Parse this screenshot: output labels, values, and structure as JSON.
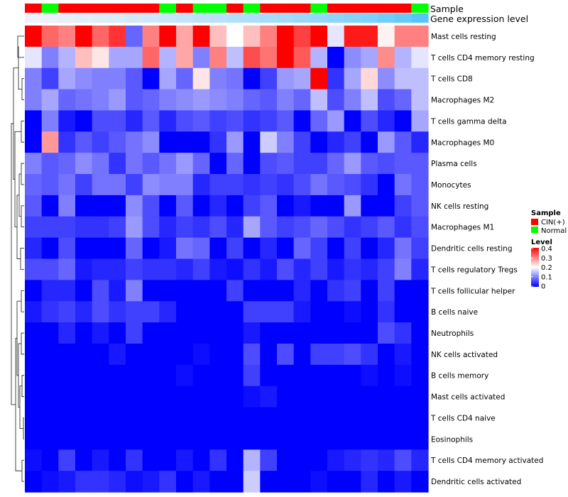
{
  "chart_data": {
    "type": "heatmap",
    "annotations": {
      "sample_title": "Sample",
      "expression_title": "Gene expression level",
      "sample": [
        "CIN",
        "Normal",
        "CIN",
        "CIN",
        "CIN",
        "CIN",
        "CIN",
        "CIN",
        "Normal",
        "CIN",
        "Normal",
        "Normal",
        "CIN",
        "Normal",
        "CIN",
        "CIN",
        "CIN",
        "Normal",
        "CIN",
        "CIN",
        "CIN",
        "CIN",
        "CIN",
        "Normal"
      ],
      "expression": [
        0.02,
        0.04,
        0.06,
        0.09,
        0.12,
        0.15,
        0.19,
        0.22,
        0.25,
        0.29,
        0.32,
        0.35,
        0.39,
        0.42,
        0.46,
        0.49,
        0.53,
        0.57,
        0.61,
        0.66,
        0.71,
        0.78,
        0.86,
        0.95
      ]
    },
    "rows": [
      "Mast cells resting",
      "T cells CD4 memory resting",
      "T cells CD8",
      "Macrophages M2",
      "T cells gamma delta",
      "Macrophages M0",
      "Plasma cells",
      "Monocytes",
      "NK cells resting",
      "Macrophages M1",
      "Dendritic cells resting",
      "T cells regulatory  Tregs",
      "T cells follicular helper",
      "B cells naive",
      "Neutrophils",
      "NK cells activated",
      "B cells memory",
      "Mast cells activated",
      "T cells CD4 naive",
      "Eosinophils",
      "T cells CD4 memory activated",
      "Dendritic cells activated"
    ],
    "values": [
      [
        0.4,
        0.32,
        0.3,
        0.4,
        0.32,
        0.36,
        0.08,
        0.3,
        0.4,
        0.27,
        0.4,
        0.25,
        0.2,
        0.25,
        0.3,
        0.4,
        0.35,
        0.4,
        0.18,
        0.38,
        0.38,
        0.21,
        0.3,
        0.3
      ],
      [
        0.18,
        0.1,
        0.14,
        0.25,
        0.22,
        0.13,
        0.13,
        0.32,
        0.14,
        0.27,
        0.1,
        0.3,
        0.15,
        0.34,
        0.31,
        0.4,
        0.33,
        0.14,
        0.0,
        0.11,
        0.13,
        0.29,
        0.14,
        0.18
      ],
      [
        0.1,
        0.05,
        0.13,
        0.11,
        0.1,
        0.1,
        0.07,
        0.0,
        0.13,
        0.08,
        0.22,
        0.1,
        0.09,
        0.0,
        0.05,
        0.12,
        0.13,
        0.4,
        0.04,
        0.13,
        0.23,
        0.11,
        0.15,
        0.15
      ],
      [
        0.1,
        0.13,
        0.08,
        0.09,
        0.1,
        0.12,
        0.07,
        0.08,
        0.1,
        0.11,
        0.12,
        0.11,
        0.1,
        0.08,
        0.07,
        0.1,
        0.08,
        0.15,
        0.06,
        0.1,
        0.15,
        0.06,
        0.08,
        0.15
      ],
      [
        0.0,
        0.1,
        0.02,
        0.0,
        0.06,
        0.06,
        0.03,
        0.07,
        0.03,
        0.06,
        0.07,
        0.05,
        0.06,
        0.04,
        0.05,
        0.07,
        0.0,
        0.08,
        0.12,
        0.0,
        0.06,
        0.03,
        0.0,
        0.13
      ],
      [
        0.0,
        0.28,
        0.04,
        0.07,
        0.05,
        0.07,
        0.09,
        0.11,
        0.0,
        0.0,
        0.0,
        0.04,
        0.12,
        0.0,
        0.16,
        0.1,
        0.05,
        0.0,
        0.03,
        0.05,
        0.0,
        0.12,
        0.07,
        0.03
      ],
      [
        0.1,
        0.07,
        0.08,
        0.11,
        0.09,
        0.04,
        0.09,
        0.07,
        0.09,
        0.12,
        0.08,
        0.0,
        0.08,
        0.0,
        0.06,
        0.07,
        0.05,
        0.05,
        0.08,
        0.12,
        0.07,
        0.06,
        0.07,
        0.07
      ],
      [
        0.08,
        0.07,
        0.09,
        0.05,
        0.09,
        0.09,
        0.05,
        0.11,
        0.1,
        0.1,
        0.03,
        0.05,
        0.05,
        0.04,
        0.05,
        0.04,
        0.06,
        0.09,
        0.07,
        0.06,
        0.04,
        0.0,
        0.09,
        0.07
      ],
      [
        0.07,
        0.0,
        0.1,
        0.0,
        0.0,
        0.0,
        0.11,
        0.06,
        0.0,
        0.07,
        0.0,
        0.03,
        0.0,
        0.05,
        0.07,
        0.0,
        0.02,
        0.0,
        0.0,
        0.12,
        0.0,
        0.0,
        0.05,
        0.07
      ],
      [
        0.05,
        0.05,
        0.05,
        0.04,
        0.04,
        0.05,
        0.12,
        0.06,
        0.03,
        0.05,
        0.04,
        0.06,
        0.03,
        0.13,
        0.07,
        0.05,
        0.06,
        0.08,
        0.06,
        0.04,
        0.05,
        0.07,
        0.04,
        0.06
      ],
      [
        0.03,
        0.0,
        0.06,
        0.0,
        0.0,
        0.0,
        0.08,
        0.0,
        0.02,
        0.09,
        0.08,
        0.0,
        0.05,
        0.0,
        0.03,
        0.0,
        0.08,
        0.05,
        0.0,
        0.05,
        0.0,
        0.03,
        0.09,
        0.05
      ],
      [
        0.06,
        0.06,
        0.08,
        0.02,
        0.03,
        0.03,
        0.05,
        0.04,
        0.04,
        0.03,
        0.05,
        0.02,
        0.01,
        0.04,
        0.02,
        0.06,
        0.03,
        0.05,
        0.02,
        0.04,
        0.03,
        0.05,
        0.1,
        0.03
      ],
      [
        0.0,
        0.03,
        0.03,
        0.0,
        0.06,
        0.02,
        0.1,
        0.0,
        0.0,
        0.0,
        0.0,
        0.0,
        0.05,
        0.0,
        0.0,
        0.0,
        0.03,
        0.0,
        0.04,
        0.05,
        0.0,
        0.05,
        0.0,
        0.0
      ],
      [
        0.02,
        0.04,
        0.05,
        0.03,
        0.06,
        0.04,
        0.05,
        0.05,
        0.03,
        0.0,
        0.0,
        0.0,
        0.0,
        0.05,
        0.05,
        0.05,
        0.02,
        0.0,
        0.0,
        0.01,
        0.0,
        0.04,
        0.0,
        0.0
      ],
      [
        0.0,
        0.0,
        0.03,
        0.0,
        0.02,
        0.0,
        0.05,
        0.0,
        0.0,
        0.0,
        0.0,
        0.0,
        0.0,
        0.02,
        0.0,
        0.0,
        0.0,
        0.0,
        0.0,
        0.0,
        0.0,
        0.06,
        0.04,
        0.0
      ],
      [
        0.0,
        0.0,
        0.0,
        0.0,
        0.0,
        0.02,
        0.0,
        0.0,
        0.0,
        0.0,
        0.01,
        0.0,
        0.0,
        0.06,
        0.0,
        0.06,
        0.0,
        0.05,
        0.05,
        0.06,
        0.04,
        0.0,
        0.02,
        0.0
      ],
      [
        0.0,
        0.0,
        0.0,
        0.0,
        0.0,
        0.0,
        0.0,
        0.0,
        0.0,
        0.01,
        0.0,
        0.0,
        0.0,
        0.05,
        0.0,
        0.0,
        0.0,
        0.0,
        0.0,
        0.0,
        0.01,
        0.0,
        0.01,
        0.0
      ],
      [
        0.0,
        0.0,
        0.0,
        0.0,
        0.0,
        0.0,
        0.0,
        0.0,
        0.0,
        0.0,
        0.0,
        0.0,
        0.0,
        0.01,
        0.02,
        0.0,
        0.0,
        0.0,
        0.0,
        0.0,
        0.0,
        0.0,
        0.0,
        0.0
      ],
      [
        0.0,
        0.0,
        0.0,
        0.0,
        0.0,
        0.0,
        0.0,
        0.0,
        0.0,
        0.0,
        0.0,
        0.0,
        0.0,
        0.0,
        0.0,
        0.0,
        0.0,
        0.0,
        0.0,
        0.0,
        0.0,
        0.0,
        0.0,
        0.0
      ],
      [
        0.0,
        0.0,
        0.0,
        0.0,
        0.0,
        0.0,
        0.0,
        0.0,
        0.0,
        0.0,
        0.0,
        0.0,
        0.0,
        0.0,
        0.0,
        0.0,
        0.0,
        0.0,
        0.0,
        0.0,
        0.0,
        0.0,
        0.0,
        0.0
      ],
      [
        0.01,
        0.0,
        0.05,
        0.0,
        0.02,
        0.0,
        0.04,
        0.0,
        0.0,
        0.02,
        0.0,
        0.04,
        0.0,
        0.14,
        0.05,
        0.0,
        0.0,
        0.0,
        0.02,
        0.03,
        0.04,
        0.03,
        0.06,
        0.03
      ],
      [
        0.0,
        0.01,
        0.02,
        0.04,
        0.04,
        0.03,
        0.01,
        0.02,
        0.04,
        0.0,
        0.02,
        0.0,
        0.0,
        0.16,
        0.0,
        0.0,
        0.0,
        0.01,
        0.0,
        0.0,
        0.03,
        0.0,
        0.02,
        0.0
      ]
    ],
    "color_scale": {
      "min": 0,
      "max": 0.4,
      "low": "#0000FF",
      "mid": "#FFFFFF",
      "high": "#FF0000",
      "ticks": [
        0.4,
        0.3,
        0.2,
        0.1,
        0
      ]
    },
    "legend": {
      "sample_title": "Sample",
      "sample_entries": [
        {
          "label": "CIN(+)",
          "color": "#FF0000"
        },
        {
          "label": "Normal",
          "color": "#00FF00"
        }
      ],
      "level_title": "Level",
      "tick_labels": [
        "0.4",
        "0.3",
        "0.2",
        "0.1",
        "0"
      ]
    },
    "annotation_colors": {
      "CIN": "#FF0000",
      "Normal": "#00FF00",
      "expr_low": "#F2F2FA",
      "expr_high": "#4FC3F7"
    }
  }
}
